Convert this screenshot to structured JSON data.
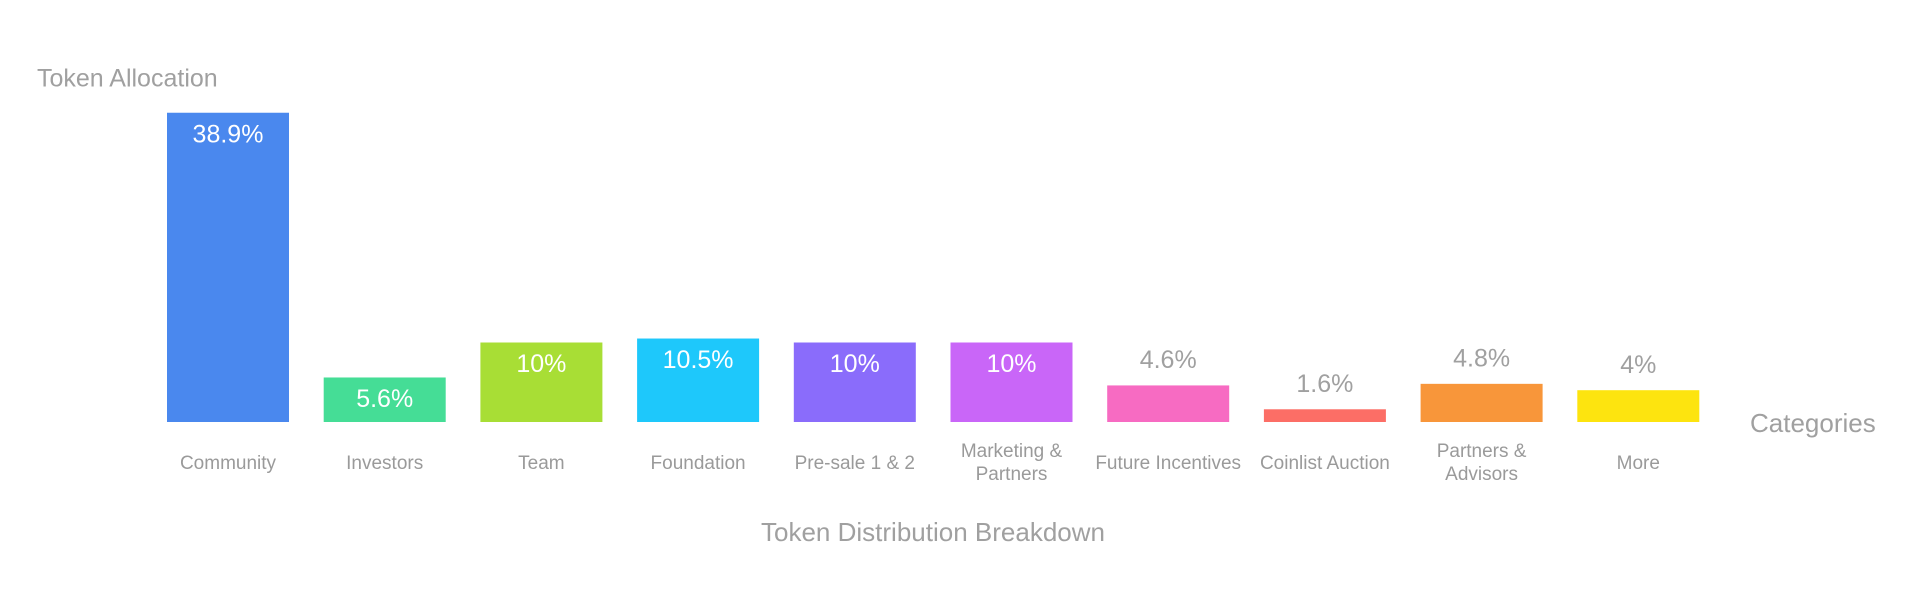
{
  "chart_data": {
    "type": "bar",
    "title": "Token Distribution Breakdown",
    "y_label": "Token Allocation",
    "x_label": "Categories",
    "categories": [
      "Community",
      "Investors",
      "Team",
      "Foundation",
      "Pre-sale 1 & 2",
      "Marketing & Partners",
      "Future Incentives",
      "Coinlist Auction",
      "Partners & Advisors",
      "More"
    ],
    "values": [
      38.9,
      5.6,
      10,
      10.5,
      10,
      10,
      4.6,
      1.6,
      4.8,
      4
    ],
    "value_labels": [
      "38.9%",
      "5.6%",
      "10%",
      "10.5%",
      "10%",
      "10%",
      "4.6%",
      "1.6%",
      "4.8%",
      "4%"
    ],
    "colors": [
      "#4a88ee",
      "#45dd96",
      "#a8de35",
      "#1ec8fb",
      "#8a6cfb",
      "#c966f8",
      "#f76bc2",
      "#fc6e66",
      "#f8963a",
      "#fde40f"
    ],
    "ylim": [
      0,
      40
    ]
  }
}
